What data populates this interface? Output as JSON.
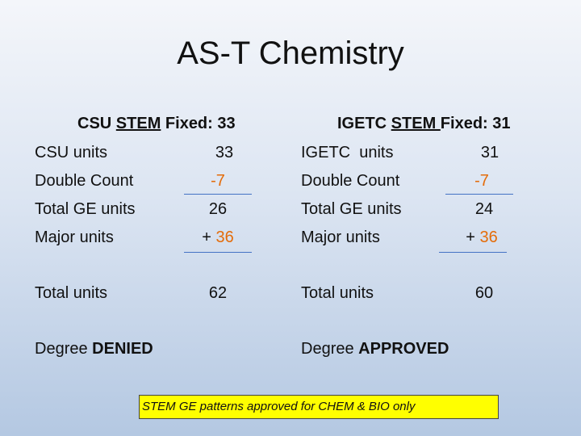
{
  "title": "AS-T Chemistry",
  "left": {
    "heading_prefix": "CSU ",
    "heading_underlined": "STEM",
    "heading_suffix": " Fixed: 33",
    "rows": [
      {
        "label": "CSU units",
        "value": "33"
      },
      {
        "label": "Double Count",
        "value": "-7"
      },
      {
        "label": "Total GE units",
        "value": "26"
      },
      {
        "label": "Major units",
        "value_prefix": "+ ",
        "value": "36"
      }
    ],
    "total_label": "Total units",
    "total_value": "62",
    "degree_prefix": "Degree ",
    "degree_status": "DENIED"
  },
  "right": {
    "heading_prefix": "IGETC ",
    "heading_underlined": "STEM ",
    "heading_suffix": "Fixed: 31",
    "rows": [
      {
        "label": "IGETC  units",
        "value": "31"
      },
      {
        "label": "Double Count",
        "value": "-7"
      },
      {
        "label": "Total GE units",
        "value": "24"
      },
      {
        "label": "Major units",
        "value_prefix": "+ ",
        "value": "36"
      }
    ],
    "total_label": "Total units",
    "total_value": "60",
    "degree_prefix": "Degree ",
    "degree_status": "APPROVED"
  },
  "note": "STEM GE patterns approved for CHEM & BIO only",
  "colors": {
    "accent_orange": "#e46c0a",
    "rule_blue": "#4472c4",
    "note_highlight": "#ffff00"
  }
}
